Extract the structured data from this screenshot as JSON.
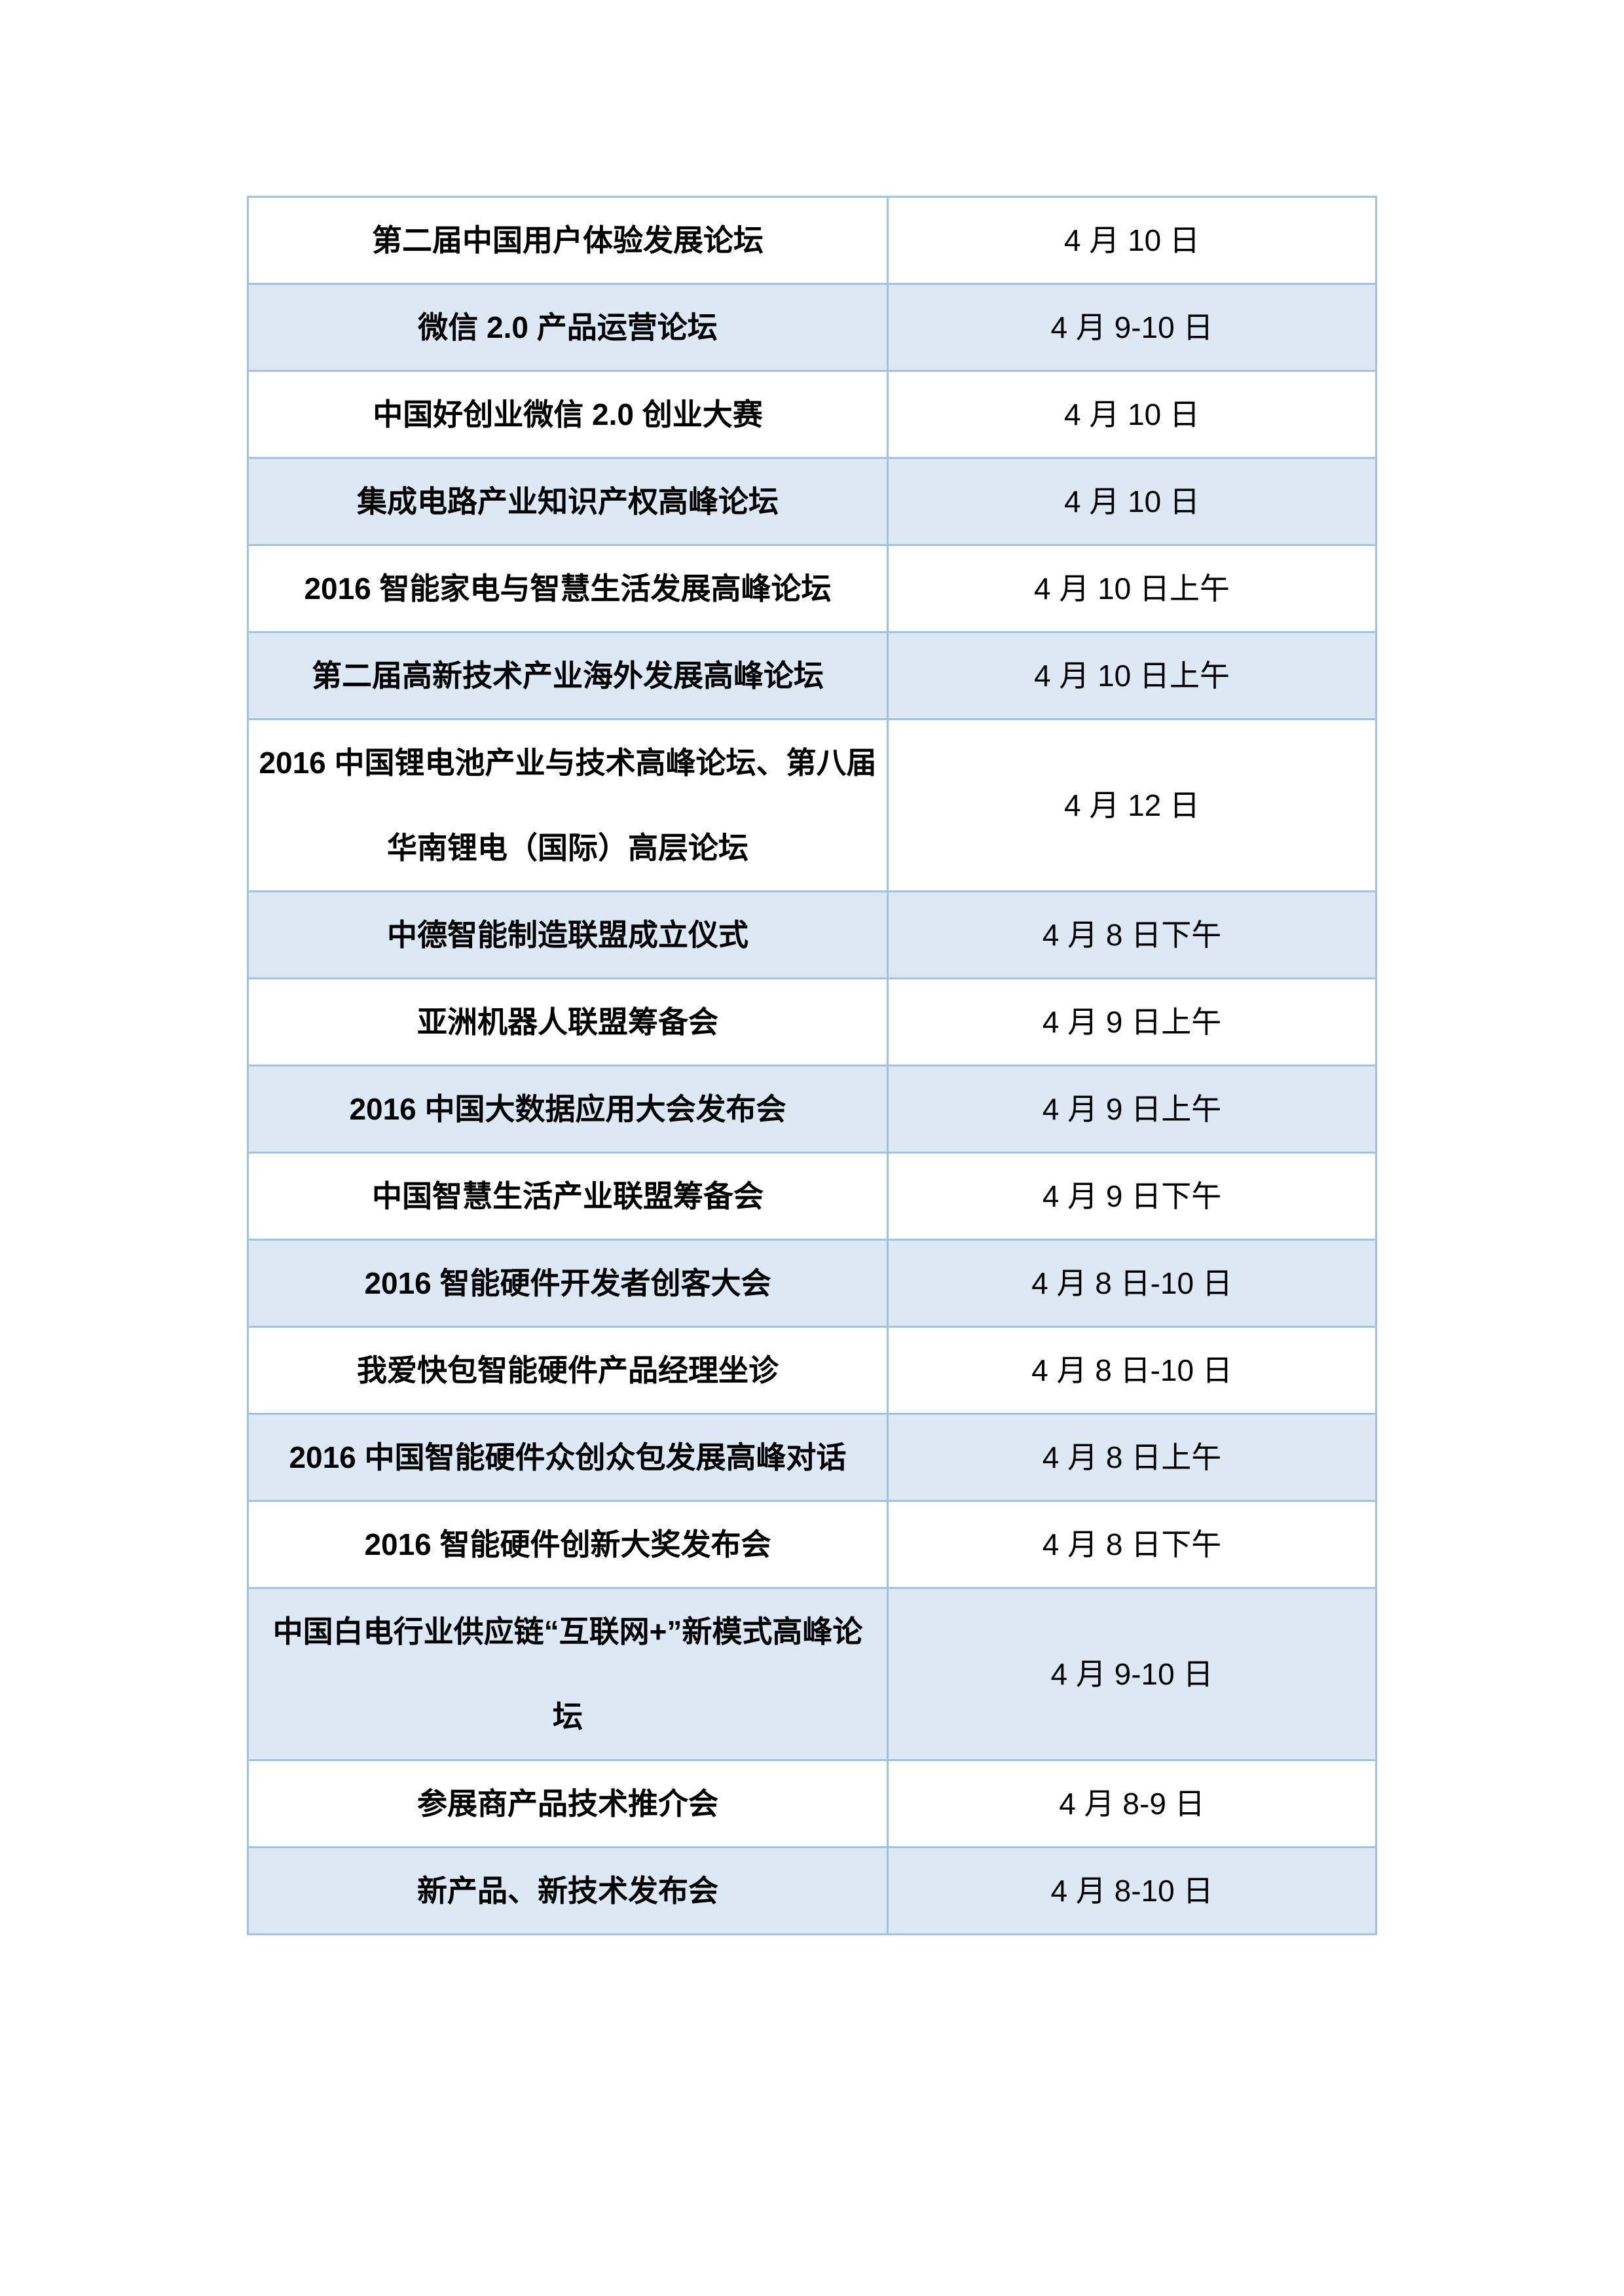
{
  "colors": {
    "band_fill": "#dce8f4",
    "border": "#a3c2de",
    "text": "#000000",
    "page_background": "#ffffff"
  },
  "table": {
    "type": "table",
    "columns": [
      "event_name",
      "event_date"
    ],
    "banding": "even-rows-light-blue",
    "rows": [
      {
        "name": "第二届中国用户体验发展论坛",
        "date": "4 月 10 日"
      },
      {
        "name": "微信 2.0 产品运营论坛",
        "date": "4 月 9-10 日"
      },
      {
        "name": "中国好创业微信 2.0 创业大赛",
        "date": "4 月 10 日"
      },
      {
        "name": "集成电路产业知识产权高峰论坛",
        "date": "4 月 10 日"
      },
      {
        "name": "2016 智能家电与智慧生活发展高峰论坛",
        "date": "4 月 10 日上午"
      },
      {
        "name": "第二届高新技术产业海外发展高峰论坛",
        "date": "4 月 10 日上午"
      },
      {
        "name": [
          "2016 中国锂电池产业与技术高峰论坛、第八届",
          "华南锂电（国际）高层论坛"
        ],
        "date": "4 月 12 日"
      },
      {
        "name": "中德智能制造联盟成立仪式",
        "date": "4 月 8 日下午"
      },
      {
        "name": "亚洲机器人联盟筹备会",
        "date": "4 月 9 日上午"
      },
      {
        "name": "2016 中国大数据应用大会发布会",
        "date": "4 月 9 日上午"
      },
      {
        "name": "中国智慧生活产业联盟筹备会",
        "date": "4 月 9 日下午"
      },
      {
        "name": "2016 智能硬件开发者创客大会",
        "date": "4 月 8 日-10 日"
      },
      {
        "name": "我爱快包智能硬件产品经理坐诊",
        "date": "4 月 8 日-10 日"
      },
      {
        "name": "2016 中国智能硬件众创众包发展高峰对话",
        "date": "4 月 8 日上午"
      },
      {
        "name": "2016 智能硬件创新大奖发布会",
        "date": "4 月 8 日下午"
      },
      {
        "name": [
          "中国白电行业供应链“互联网+”新模式高峰论",
          "坛"
        ],
        "date": "4 月 9-10 日"
      },
      {
        "name": "参展商产品技术推介会",
        "date": "4 月 8-9 日"
      },
      {
        "name": "新产品、新技术发布会",
        "date": "4 月 8-10 日"
      }
    ]
  }
}
